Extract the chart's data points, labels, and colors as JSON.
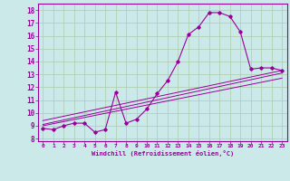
{
  "bg_color": "#cce9e9",
  "line_color": "#990099",
  "grid_color": "#aaccaa",
  "xlim": [
    -0.5,
    23.5
  ],
  "ylim": [
    7.8,
    18.5
  ],
  "yticks": [
    8,
    9,
    10,
    11,
    12,
    13,
    14,
    15,
    16,
    17,
    18
  ],
  "xticks": [
    0,
    1,
    2,
    3,
    4,
    5,
    6,
    7,
    8,
    9,
    10,
    11,
    12,
    13,
    14,
    15,
    16,
    17,
    18,
    19,
    20,
    21,
    22,
    23
  ],
  "main_x": [
    0,
    1,
    2,
    3,
    4,
    5,
    6,
    7,
    8,
    9,
    10,
    11,
    12,
    13,
    14,
    15,
    16,
    17,
    18,
    19,
    20,
    21,
    22,
    23
  ],
  "main_y": [
    8.8,
    8.7,
    9.0,
    9.2,
    9.2,
    8.5,
    8.7,
    11.6,
    9.2,
    9.5,
    10.3,
    11.5,
    12.5,
    14.0,
    16.1,
    16.7,
    17.8,
    17.8,
    17.5,
    16.3,
    13.4,
    13.5,
    13.5,
    13.3
  ],
  "line1_x": [
    0,
    23
  ],
  "line1_y": [
    9.1,
    13.1
  ],
  "line2_x": [
    0,
    23
  ],
  "line2_y": [
    9.4,
    13.3
  ],
  "line3_x": [
    0,
    23
  ],
  "line3_y": [
    9.0,
    12.7
  ],
  "xlabel": "Windchill (Refroidissement éolien,°C)"
}
